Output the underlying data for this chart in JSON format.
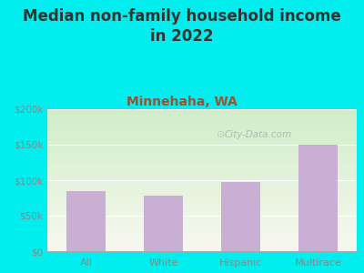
{
  "title": "Median non-family household income\nin 2022",
  "subtitle": "Minnehaha, WA",
  "categories": [
    "All",
    "White",
    "Hispanic",
    "Multirace"
  ],
  "values": [
    85000,
    78000,
    97000,
    150000
  ],
  "bar_color": "#c9afd4",
  "ylim": [
    0,
    200000
  ],
  "yticks": [
    0,
    50000,
    100000,
    150000,
    200000
  ],
  "ytick_labels": [
    "$0",
    "$50k",
    "$100k",
    "$150k",
    "$200k"
  ],
  "title_fontsize": 12,
  "subtitle_fontsize": 10,
  "title_color": "#333333",
  "subtitle_color": "#a05030",
  "tick_color": "#888888",
  "background_color": "#00eeee",
  "plot_bg_top": "#d0eec8",
  "plot_bg_bottom": "#f8f8f0",
  "watermark": "City-Data.com"
}
